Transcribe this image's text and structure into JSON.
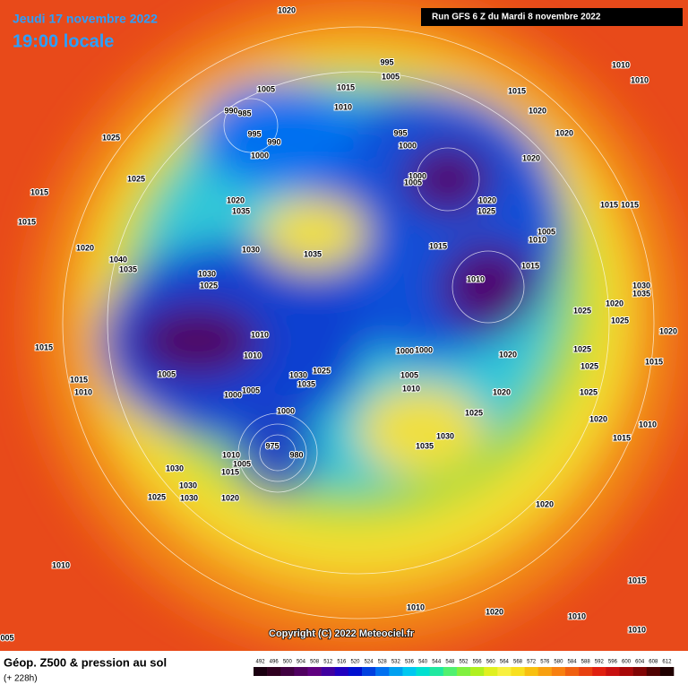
{
  "header": {
    "date": "Jeudi 17 novembre 2022",
    "time": "19:00 locale",
    "run": "Run GFS 6 Z du Mardi 8 novembre 2022"
  },
  "copyright": "Copyright (C) 2022 Meteociel.fr",
  "footer": {
    "title": "Géop. Z500 & pression au sol",
    "lead": "(+ 228h)"
  },
  "legend": {
    "values": [
      492,
      496,
      500,
      504,
      508,
      512,
      516,
      520,
      524,
      528,
      532,
      536,
      540,
      544,
      548,
      552,
      556,
      560,
      564,
      568,
      572,
      576,
      580,
      584,
      588,
      592,
      596,
      600,
      604,
      608,
      612
    ],
    "colors": [
      "#1a0010",
      "#300020",
      "#400040",
      "#500060",
      "#600080",
      "#4000a0",
      "#2000c0",
      "#0010d0",
      "#0040e0",
      "#0070f0",
      "#00a0f0",
      "#00c8f0",
      "#00e0d0",
      "#20e8a0",
      "#50f070",
      "#80f040",
      "#b0f020",
      "#e0f020",
      "#f8f040",
      "#f8e020",
      "#f8c010",
      "#f8a010",
      "#f88010",
      "#f06010",
      "#e84010",
      "#e02010",
      "#c81010",
      "#a80808",
      "#800404",
      "#500202",
      "#200000"
    ]
  },
  "pressure_labels": [
    "1020",
    "1010",
    "1010",
    "995",
    "1005",
    "1015",
    "1005",
    "1015",
    "990",
    "985",
    "1010",
    "1020",
    "1025",
    "995",
    "995",
    "990",
    "1000",
    "1000",
    "1020",
    "1020",
    "1025",
    "1000",
    "1005",
    "1015",
    "1020",
    "1035",
    "1020",
    "1025",
    "1015",
    "1015",
    "1015",
    "1005",
    "1010",
    "1030",
    "1035",
    "1015",
    "1020",
    "1040",
    "1035",
    "1030",
    "1015",
    "1010",
    "1025",
    "1030",
    "1035",
    "1020",
    "1025",
    "1025",
    "1010",
    "1020",
    "1015",
    "1000",
    "1000",
    "1010",
    "1020",
    "1025",
    "1015",
    "1025",
    "1005",
    "1030",
    "1025",
    "1005",
    "1035",
    "1015",
    "1010",
    "1010",
    "1000",
    "1005",
    "1020",
    "1025",
    "1000",
    "1025",
    "1020",
    "1010",
    "1015",
    "1030",
    "1035",
    "975",
    "980",
    "1010",
    "1005",
    "1015",
    "1030",
    "1030",
    "1025",
    "1030",
    "1020",
    "1020",
    "1010",
    "1015",
    "1010",
    "1020",
    "1010",
    "1010",
    "005"
  ]
}
